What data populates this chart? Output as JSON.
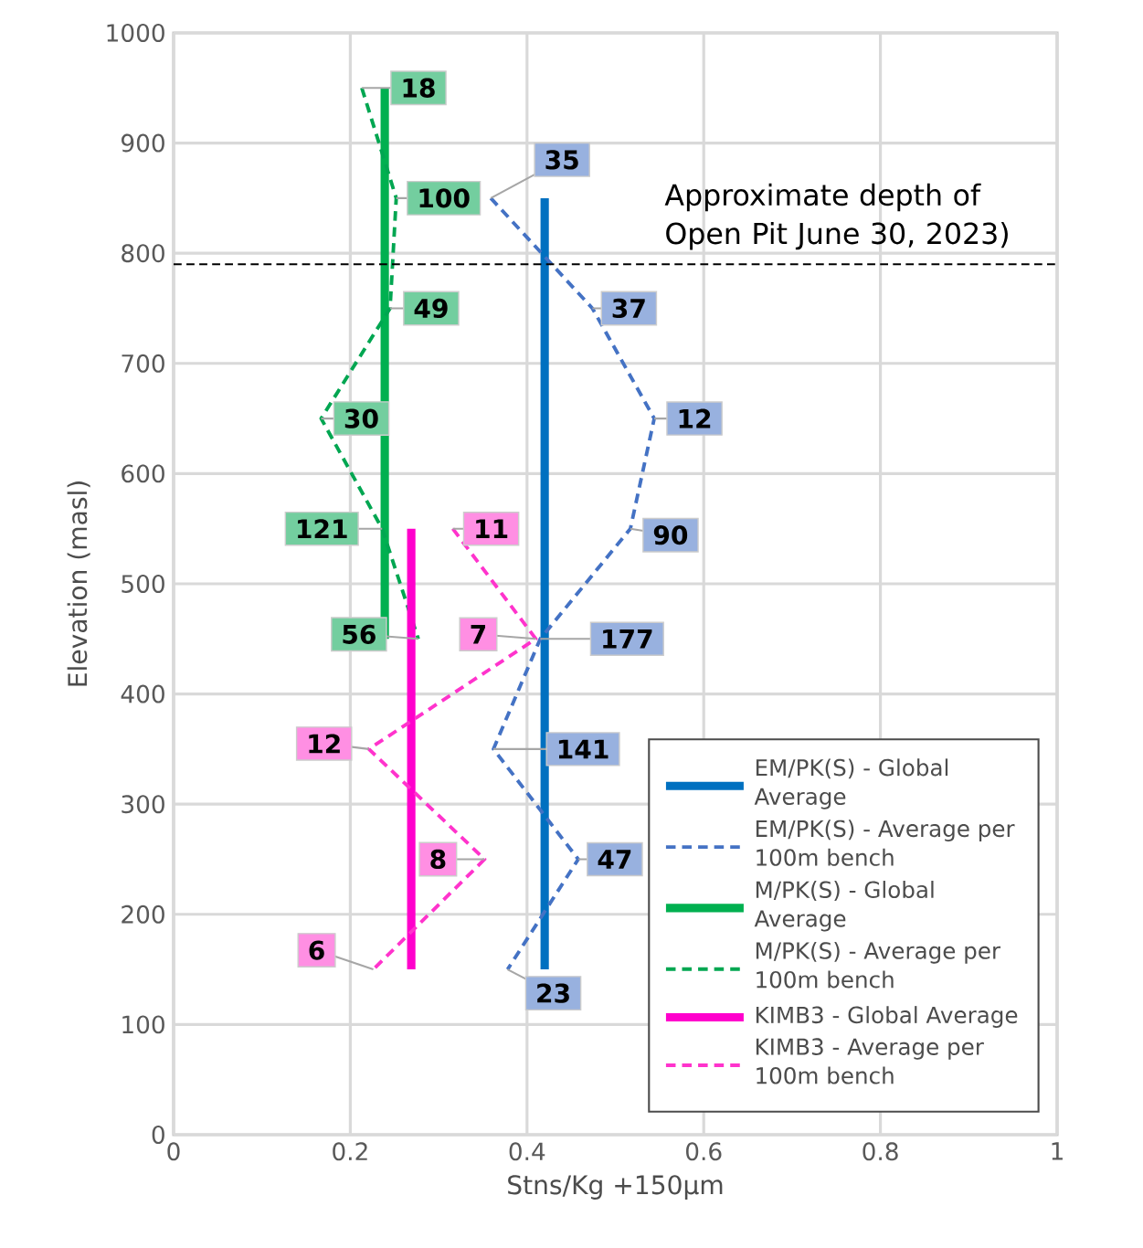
{
  "chart_data": {
    "type": "line",
    "xlabel": "Stns/Kg +150µm",
    "ylabel": "Elevation (masl)",
    "xlim": [
      0,
      1
    ],
    "xticks": [
      0,
      0.2,
      0.4,
      0.6,
      0.8,
      1
    ],
    "ylim": [
      0,
      1000
    ],
    "yticks": [
      0,
      100,
      200,
      300,
      400,
      500,
      600,
      700,
      800,
      900,
      1000
    ],
    "grid": true,
    "legend": "bottom right",
    "series": [
      {
        "name": "EM/PK(S) - Global Average",
        "color": "#0070c0",
        "line_style": "solid",
        "x": [
          0.42,
          0.42
        ],
        "values": [
          150,
          850
        ]
      },
      {
        "name": "EM/PK(S) - Average per 100m bench",
        "color": "#4472c4",
        "line_style": "dashed",
        "x": [
          0.359,
          0.474,
          0.544,
          0.517,
          0.415,
          0.362,
          0.458,
          0.378
        ],
        "values": [
          850,
          750,
          650,
          550,
          450,
          350,
          250,
          150
        ]
      },
      {
        "name": "M/PK(S) - Global Average",
        "color": "#00b050",
        "line_style": "solid",
        "x": [
          0.239,
          0.239
        ],
        "values": [
          450,
          950
        ]
      },
      {
        "name": "M/PK(S) - Average per 100m bench",
        "color": "#00a651",
        "line_style": "dashed",
        "x": [
          0.213,
          0.252,
          0.245,
          0.167,
          0.236,
          0.277
        ],
        "values": [
          950,
          850,
          750,
          650,
          550,
          450
        ]
      },
      {
        "name": "KIMB3 - Global Average",
        "color": "#ff00cc",
        "line_style": "solid",
        "x": [
          0.269,
          0.269
        ],
        "values": [
          150,
          550
        ]
      },
      {
        "name": "KIMB3 - Average per 100m bench",
        "color": "#ff33cc",
        "line_style": "dashed",
        "x": [
          0.316,
          0.41,
          0.221,
          0.352,
          0.226
        ],
        "values": [
          550,
          450,
          350,
          250,
          150
        ]
      }
    ],
    "ref_lines": [
      {
        "axis": "y",
        "value": 790,
        "label": "Approximate depth of Open Pit June 30, 2023)",
        "color": "#000000",
        "line_style": "dashed"
      }
    ],
    "annotations": [
      {
        "text": "35",
        "x": 0.359,
        "y": 850
      },
      {
        "text": "37",
        "x": 0.474,
        "y": 750
      },
      {
        "text": "12",
        "x": 0.544,
        "y": 650
      },
      {
        "text": "90",
        "x": 0.517,
        "y": 550
      },
      {
        "text": "177",
        "x": 0.415,
        "y": 450
      },
      {
        "text": "141",
        "x": 0.362,
        "y": 350
      },
      {
        "text": "47",
        "x": 0.458,
        "y": 250
      },
      {
        "text": "23",
        "x": 0.378,
        "y": 150
      },
      {
        "text": "18",
        "x": 0.213,
        "y": 950
      },
      {
        "text": "100",
        "x": 0.252,
        "y": 850
      },
      {
        "text": "49",
        "x": 0.245,
        "y": 750
      },
      {
        "text": "30",
        "x": 0.167,
        "y": 650
      },
      {
        "text": "121",
        "x": 0.236,
        "y": 550
      },
      {
        "text": "56",
        "x": 0.277,
        "y": 450
      },
      {
        "text": "11",
        "x": 0.316,
        "y": 550
      },
      {
        "text": "7",
        "x": 0.41,
        "y": 450
      },
      {
        "text": "12",
        "x": 0.221,
        "y": 350
      },
      {
        "text": "8",
        "x": 0.352,
        "y": 250
      },
      {
        "text": "6",
        "x": 0.226,
        "y": 150
      }
    ]
  }
}
